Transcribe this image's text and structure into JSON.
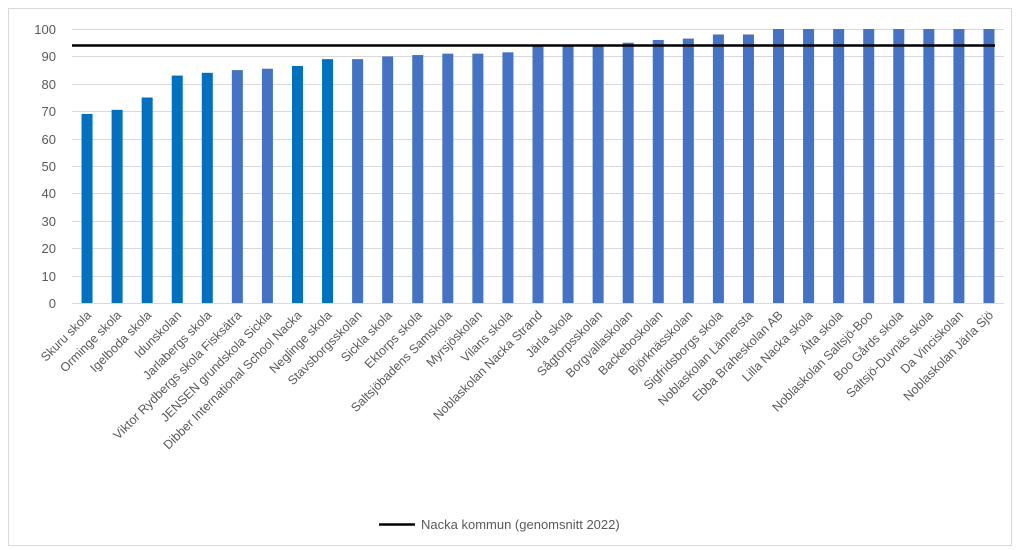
{
  "chart_data": {
    "type": "bar",
    "title": "",
    "xlabel": "",
    "ylabel": "",
    "ylim": [
      0,
      100
    ],
    "yticks": [
      0,
      10,
      20,
      30,
      40,
      50,
      60,
      70,
      80,
      90,
      100
    ],
    "grid": true,
    "legend_position": "bottom",
    "categories": [
      "Skuru skola",
      "Orminge skola",
      "Igelboda skola",
      "Idunskolan",
      "Jarlabergs skola",
      "Viktor Rydbergs skola Fisksätra",
      "JENSEN grundskola Sickla",
      "Dibber International School Nacka",
      "Neglinge skola",
      "Stavsborgsskolan",
      "Sickla skola",
      "Ektorps skola",
      "Saltsjöbadens Samskola",
      "Myrsjöskolan",
      "Vilans skola",
      "Noblaskolan Nacka Strand",
      "Järla skola",
      "Sågtorpsskolan",
      "Borgvallaskolan",
      "Backeboskolan",
      "Björknässkolan",
      "Sigfridsborgs skola",
      "Noblaskolan Lännersta",
      "Ebba Braheskolan AB",
      "Lilla Nacka skola",
      "Älta skola",
      "Noblaskolan Saltsjö-Boo",
      "Boo Gårds skola",
      "Saltsjö-Duvnäs skola",
      "Da Vinciskolan",
      "Noblaskolan Järla Sjö"
    ],
    "values": [
      69,
      70.5,
      75,
      83,
      84,
      85,
      85.5,
      86.5,
      89,
      89,
      90,
      90.5,
      91,
      91,
      91.5,
      94,
      94,
      94,
      95,
      96,
      96.5,
      98,
      98,
      100,
      100,
      100,
      100,
      100,
      100,
      100,
      100
    ],
    "bar_colors": [
      "#0070c0",
      "#0070c0",
      "#0070c0",
      "#0070c0",
      "#0070c0",
      "#4472c4",
      "#4472c4",
      "#0070c0",
      "#0070c0",
      "#4472c4",
      "#4472c4",
      "#4472c4",
      "#4472c4",
      "#4472c4",
      "#4472c4",
      "#4472c4",
      "#4472c4",
      "#4472c4",
      "#4472c4",
      "#4472c4",
      "#4472c4",
      "#4472c4",
      "#4472c4",
      "#4472c4",
      "#4472c4",
      "#4472c4",
      "#4472c4",
      "#4472c4",
      "#4472c4",
      "#4472c4",
      "#4472c4"
    ],
    "reference_line": {
      "name": "Nacka kommun (genomsnitt 2022)",
      "value": 94,
      "color": "#000000"
    },
    "grid_color": "#d9d9d9"
  }
}
